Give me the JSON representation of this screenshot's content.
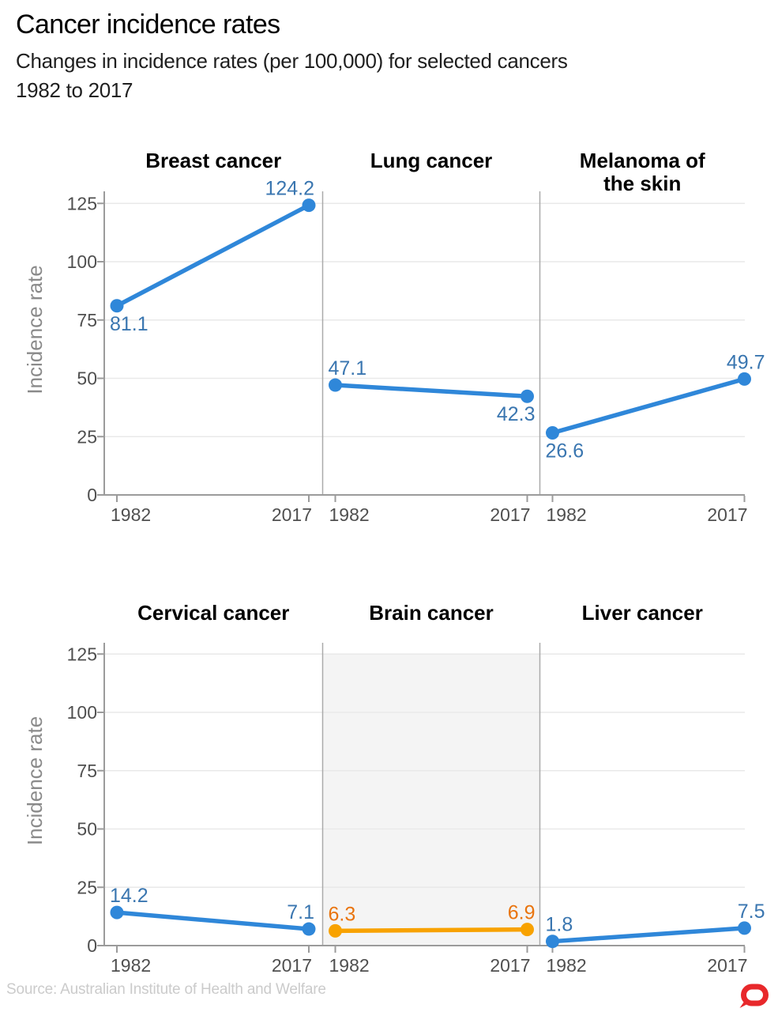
{
  "header": {
    "title": "Cancer incidence rates",
    "subtitle_line1": "Changes in incidence rates (per 100,000) for selected cancers",
    "subtitle_line2": "1982 to 2017"
  },
  "chart_data": {
    "type": "line",
    "title": "Cancer incidence rates",
    "subtitle": "Changes in incidence rates (per 100,000) for selected cancers 1982 to 2017",
    "ylabel": "Incidence rate",
    "x_categories": [
      "1982",
      "2017"
    ],
    "yticks": [
      0,
      25,
      50,
      75,
      100,
      125
    ],
    "ylim": [
      0,
      130
    ],
    "grid": true,
    "legend": "none",
    "facet_rows": [
      [
        {
          "title_lines": [
            "Breast cancer"
          ],
          "series_color": "blue",
          "highlighted": false,
          "values": [
            81.1,
            124.2
          ],
          "value_labels": [
            "81.1",
            "124.2"
          ],
          "label_positions": [
            "below",
            "above"
          ]
        },
        {
          "title_lines": [
            "Lung cancer"
          ],
          "series_color": "blue",
          "highlighted": false,
          "values": [
            47.1,
            42.3
          ],
          "value_labels": [
            "47.1",
            "42.3"
          ],
          "label_positions": [
            "above",
            "below"
          ]
        },
        {
          "title_lines": [
            "Melanoma of",
            "the skin"
          ],
          "series_color": "blue",
          "highlighted": false,
          "values": [
            26.6,
            49.7
          ],
          "value_labels": [
            "26.6",
            "49.7"
          ],
          "label_positions": [
            "below",
            "above"
          ]
        }
      ],
      [
        {
          "title_lines": [
            "Cervical cancer"
          ],
          "series_color": "blue",
          "highlighted": false,
          "values": [
            14.2,
            7.1
          ],
          "value_labels": [
            "14.2",
            "7.1"
          ],
          "label_positions": [
            "above",
            "above"
          ]
        },
        {
          "title_lines": [
            "Brain cancer"
          ],
          "series_color": "orange",
          "highlighted": true,
          "values": [
            6.3,
            6.9
          ],
          "value_labels": [
            "6.3",
            "6.9"
          ],
          "label_positions": [
            "above",
            "above"
          ]
        },
        {
          "title_lines": [
            "Liver cancer"
          ],
          "series_color": "blue",
          "highlighted": false,
          "values": [
            1.8,
            7.5
          ],
          "value_labels": [
            "1.8",
            "7.5"
          ],
          "label_positions": [
            "above",
            "above"
          ]
        }
      ]
    ]
  },
  "footer": {
    "source": "Source: Australian Institute of Health and Welfare",
    "logo_icon": "the-conversation-logo"
  },
  "colors": {
    "blue_line": "#2f87d9",
    "blue_label": "#3a76b0",
    "orange_line": "#f8a200",
    "orange_label": "#e9740e",
    "grid": "#e9e9e9",
    "axis": "#9b9b9b",
    "separator": "#aaaaaa",
    "tick_label": "#4f4f4f",
    "axis_title": "#8a8a8a",
    "facet_title": "#000000",
    "highlight_bg": "#f4f4f4",
    "logo_red": "#e8282b"
  }
}
